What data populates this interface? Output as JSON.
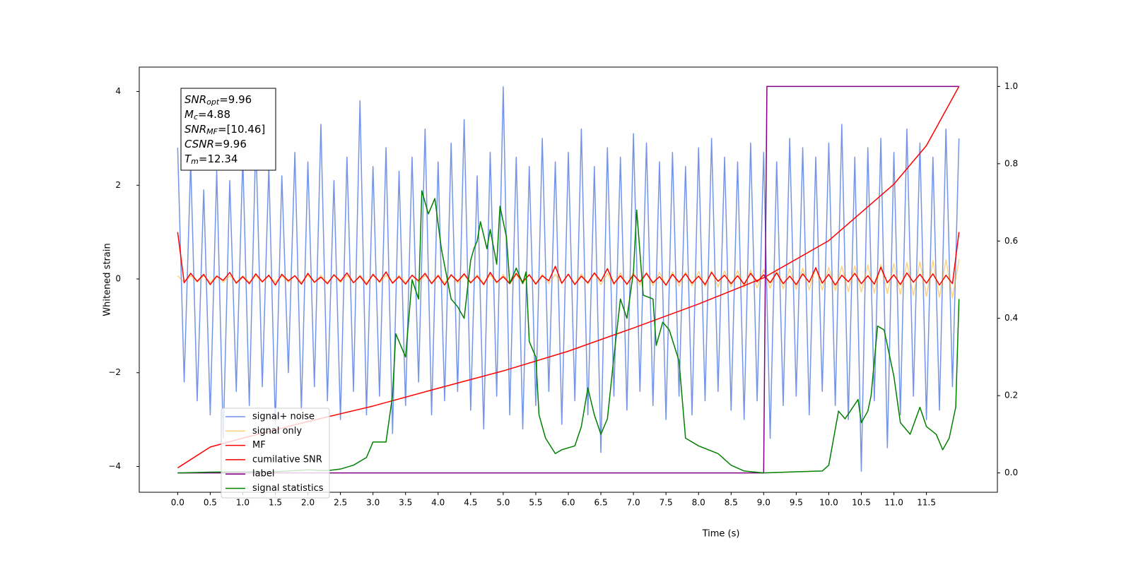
{
  "chart_data": {
    "type": "line",
    "x_label": "Time (s)",
    "y_label": "Whitened strain",
    "xlim": [
      -0.59,
      12.59
    ],
    "ylim": [
      -4.55,
      4.52
    ],
    "y2lim": [
      -0.05,
      1.05
    ],
    "xticks": [
      {
        "value": 0,
        "label": "0.0"
      },
      0.5,
      {
        "value": 1,
        "label": "1.0"
      },
      1.5,
      {
        "value": 2,
        "label": "2.0"
      },
      2.5,
      {
        "value": 3,
        "label": "3.0"
      },
      3.5,
      {
        "value": 4,
        "label": "4.0"
      },
      4.5,
      {
        "value": 5,
        "label": "5.0"
      },
      5.5,
      {
        "value": 6,
        "label": "6.0"
      },
      6.5,
      {
        "value": 7,
        "label": "7.0"
      },
      7.5,
      {
        "value": 8,
        "label": "8.0"
      },
      8.5,
      {
        "value": 9,
        "label": "9.0"
      },
      9.5,
      {
        "value": 10,
        "label": "10.0"
      },
      10.5,
      {
        "value": 11,
        "label": "11.0"
      },
      11.5
    ],
    "yticks": [
      {
        "value": -4,
        "label": "−4"
      },
      {
        "value": -2,
        "label": "−2"
      },
      0,
      2,
      4
    ],
    "y2ticks": [
      {
        "value": 0,
        "label": "0.0"
      },
      0.2,
      0.4,
      0.6,
      0.8,
      {
        "value": 1,
        "label": "1.0"
      }
    ],
    "legend": "lower left",
    "annotation": [
      {
        "symbol": "SNR",
        "subscript": "opt",
        "text": "=9.96"
      },
      {
        "symbol": "M",
        "subscript": "c",
        "text": "=4.88"
      },
      {
        "symbol": "SNR",
        "subscript": "MF",
        "text": "=[10.46]"
      },
      {
        "symbol": "CSNR",
        "text": "=9.96"
      },
      {
        "symbol": "T",
        "subscript": "m",
        "text": "=12.34"
      }
    ],
    "x": [
      0,
      0.1,
      0.2,
      0.3,
      0.4,
      0.5,
      0.6,
      0.7,
      0.8,
      0.9,
      1,
      1.1,
      1.2,
      1.3,
      1.4,
      1.5,
      1.6,
      1.7,
      1.8,
      1.9,
      2,
      2.1,
      2.2,
      2.3,
      2.4,
      2.5,
      2.6,
      2.7,
      2.8,
      2.9,
      3,
      3.1,
      3.2,
      3.3,
      3.4,
      3.5,
      3.6,
      3.7,
      3.8,
      3.9,
      4,
      4.1,
      4.2,
      4.3,
      4.4,
      4.5,
      4.6,
      4.7,
      4.8,
      4.9,
      5,
      5.1,
      5.2,
      5.3,
      5.4,
      5.5,
      5.6,
      5.7,
      5.8,
      5.9,
      6,
      6.1,
      6.2,
      6.3,
      6.4,
      6.5,
      6.6,
      6.7,
      6.8,
      6.9,
      7,
      7.1,
      7.2,
      7.3,
      7.4,
      7.5,
      7.6,
      7.7,
      7.8,
      7.9,
      8,
      8.1,
      8.2,
      8.3,
      8.4,
      8.5,
      8.6,
      8.7,
      8.8,
      8.9,
      9,
      9.1,
      9.2,
      9.3,
      9.4,
      9.5,
      9.6,
      9.7,
      9.8,
      9.9,
      10,
      10.1,
      10.2,
      10.3,
      10.4,
      10.5,
      10.6,
      10.7,
      10.8,
      10.9,
      11,
      11.1,
      11.2,
      11.3,
      11.4,
      11.5,
      11.6,
      11.7,
      11.8,
      11.9,
      12
    ],
    "series": [
      {
        "name": "signal+ noise",
        "color": "#7494e8",
        "alpha": 1,
        "values": [
          2.8,
          -2.2,
          2.5,
          -2.6,
          1.9,
          -2.9,
          2.3,
          -3.4,
          2.1,
          -2.4,
          2.6,
          -2.7,
          3.0,
          -2.3,
          2.4,
          -3.1,
          2.2,
          -2.0,
          2.7,
          -2.8,
          2.5,
          -2.3,
          3.3,
          -2.6,
          2.1,
          -3.0,
          2.6,
          -2.4,
          3.8,
          -2.9,
          2.4,
          -2.5,
          2.8,
          -3.3,
          2.3,
          -2.7,
          2.6,
          -2.2,
          3.2,
          -2.9,
          2.5,
          -2.6,
          2.9,
          -2.4,
          3.4,
          -2.8,
          2.2,
          -3.2,
          2.7,
          -2.5,
          4.1,
          -2.9,
          2.6,
          -3.2,
          2.4,
          -2.7,
          3.0,
          -2.4,
          2.5,
          -3.1,
          2.7,
          -2.6,
          3.2,
          -2.9,
          2.4,
          -3.7,
          2.8,
          -2.5,
          2.6,
          -2.8,
          3.1,
          -2.4,
          2.9,
          -2.7,
          2.5,
          -3.0,
          2.7,
          -2.5,
          2.4,
          -2.9,
          2.8,
          -2.6,
          3.0,
          -2.4,
          2.6,
          -2.8,
          2.5,
          -3.0,
          2.9,
          -2.6,
          2.7,
          -3.4,
          2.5,
          -2.7,
          3.0,
          -2.5,
          2.8,
          -2.9,
          2.6,
          -2.4,
          2.9,
          -2.7,
          3.3,
          -3.0,
          2.6,
          -4.1,
          2.8,
          -2.6,
          3.0,
          -3.6,
          2.7,
          -2.9,
          3.2,
          -2.5,
          2.9,
          -3.0,
          2.6,
          -2.8,
          3.2,
          -2.3,
          3.0
        ]
      },
      {
        "name": "signal only",
        "color": "#ffa500",
        "alpha": 0.5,
        "values": [
          0.07,
          -0.07,
          0.07,
          -0.07,
          0.07,
          -0.07,
          0.07,
          -0.07,
          0.07,
          -0.07,
          0.07,
          -0.07,
          0.07,
          -0.07,
          0.07,
          -0.07,
          0.07,
          -0.07,
          0.07,
          -0.07,
          0.08,
          -0.08,
          0.08,
          -0.08,
          0.08,
          -0.08,
          0.08,
          -0.08,
          0.08,
          -0.08,
          0.08,
          -0.08,
          0.08,
          -0.08,
          0.08,
          -0.08,
          0.08,
          -0.08,
          0.08,
          -0.08,
          0.09,
          -0.09,
          0.09,
          -0.09,
          0.09,
          -0.09,
          0.09,
          -0.09,
          0.09,
          -0.09,
          0.1,
          -0.1,
          0.1,
          -0.1,
          0.1,
          -0.1,
          0.1,
          -0.1,
          0.1,
          -0.1,
          0.11,
          -0.11,
          0.11,
          -0.11,
          0.12,
          -0.12,
          0.12,
          -0.12,
          0.13,
          -0.13,
          0.13,
          -0.13,
          0.14,
          -0.14,
          0.14,
          -0.14,
          0.15,
          -0.15,
          0.15,
          -0.15,
          0.16,
          -0.16,
          0.17,
          -0.17,
          0.17,
          -0.17,
          0.18,
          -0.18,
          0.19,
          -0.19,
          0.2,
          -0.2,
          0.21,
          -0.21,
          0.22,
          -0.22,
          0.23,
          -0.23,
          0.24,
          -0.24,
          0.25,
          -0.25,
          0.27,
          -0.27,
          0.28,
          -0.28,
          0.3,
          -0.3,
          0.31,
          -0.31,
          0.33,
          -0.33,
          0.35,
          -0.35,
          0.37,
          -0.37,
          0.39,
          -0.39,
          0.41,
          -0.41,
          0.42
        ]
      },
      {
        "name": "MF",
        "color": "#ff0000",
        "alpha": 1,
        "values": [
          1.0,
          -0.08,
          0.12,
          -0.05,
          0.1,
          -0.12,
          0.06,
          -0.03,
          0.14,
          -0.09,
          0.05,
          -0.1,
          0.11,
          -0.06,
          0.08,
          -0.13,
          0.1,
          -0.04,
          0.07,
          -0.11,
          0.12,
          -0.07,
          0.04,
          -0.1,
          0.09,
          -0.05,
          0.13,
          -0.08,
          0.06,
          -0.12,
          0.1,
          -0.06,
          0.15,
          -0.09,
          0.05,
          -0.11,
          0.08,
          -0.04,
          0.12,
          -0.1,
          0.07,
          -0.13,
          0.09,
          -0.05,
          0.11,
          -0.08,
          0.06,
          -0.12,
          0.14,
          -0.07,
          0.05,
          -0.1,
          0.12,
          -0.06,
          0.09,
          -0.11,
          0.07,
          -0.04,
          0.27,
          -0.09,
          0.1,
          -0.12,
          0.06,
          -0.08,
          0.13,
          -0.05,
          0.22,
          -0.1,
          0.07,
          -0.11,
          0.09,
          -0.06,
          0.12,
          -0.08,
          0.05,
          -0.13,
          0.1,
          -0.07,
          0.11,
          -0.09,
          0.06,
          -0.12,
          0.14,
          -0.05,
          0.08,
          -0.1,
          0.07,
          -0.11,
          0.12,
          -0.06,
          0.09,
          -0.08,
          0.13,
          -0.1,
          0.06,
          -0.12,
          0.11,
          -0.07,
          0.24,
          -0.09,
          0.1,
          -0.13,
          0.08,
          -0.06,
          0.12,
          -0.1,
          0.07,
          -0.11,
          0.25,
          -0.08,
          0.09,
          -0.12,
          0.13,
          -0.07,
          0.1,
          -0.09,
          0.11,
          -0.13,
          0.08,
          -0.1,
          1.0
        ]
      },
      {
        "name": "cumilative SNR",
        "color": "#ff0000",
        "alpha": 1,
        "axis": "y2",
        "x": [
          0,
          0.5,
          1,
          2,
          3,
          4,
          5,
          6,
          7,
          8,
          9,
          10,
          11,
          11.5,
          12
        ],
        "values": [
          0.013,
          0.067,
          0.09,
          0.133,
          0.173,
          0.219,
          0.264,
          0.315,
          0.375,
          0.437,
          0.505,
          0.601,
          0.747,
          0.847,
          1.0
        ]
      },
      {
        "name": "label",
        "color": "#800080",
        "alpha": 1,
        "axis": "y2",
        "x": [
          0,
          9.0,
          9.05,
          12.0
        ],
        "values": [
          0,
          0,
          1,
          1
        ]
      },
      {
        "name": "signal statistics",
        "color": "#008000",
        "alpha": 1,
        "axis": "y2",
        "x": [
          0,
          0.5,
          1,
          1.5,
          2,
          2.3,
          2.5,
          2.7,
          2.9,
          3,
          3.2,
          3.3,
          3.35,
          3.5,
          3.6,
          3.7,
          3.75,
          3.85,
          3.95,
          4.05,
          4.2,
          4.3,
          4.4,
          4.5,
          4.55,
          4.6,
          4.65,
          4.75,
          4.8,
          4.9,
          4.95,
          5.05,
          5.1,
          5.2,
          5.3,
          5.35,
          5.4,
          5.5,
          5.55,
          5.65,
          5.8,
          5.9,
          6.1,
          6.2,
          6.3,
          6.4,
          6.5,
          6.6,
          6.7,
          6.8,
          6.9,
          7,
          7.05,
          7.15,
          7.3,
          7.35,
          7.45,
          7.55,
          7.7,
          7.8,
          8,
          8.3,
          8.5,
          8.7,
          9,
          9.5,
          9.9,
          10,
          10.15,
          10.25,
          10.45,
          10.5,
          10.6,
          10.65,
          10.75,
          10.85,
          11,
          11.1,
          11.25,
          11.4,
          11.5,
          11.65,
          11.75,
          11.85,
          11.95,
          12
        ],
        "values": [
          0.0,
          0.002,
          0.003,
          0.003,
          0.008,
          0.006,
          0.01,
          0.02,
          0.04,
          0.08,
          0.08,
          0.2,
          0.36,
          0.3,
          0.5,
          0.45,
          0.73,
          0.67,
          0.71,
          0.58,
          0.45,
          0.43,
          0.4,
          0.55,
          0.58,
          0.6,
          0.65,
          0.58,
          0.63,
          0.54,
          0.69,
          0.61,
          0.49,
          0.53,
          0.49,
          0.52,
          0.34,
          0.3,
          0.15,
          0.09,
          0.05,
          0.06,
          0.07,
          0.12,
          0.22,
          0.15,
          0.1,
          0.14,
          0.3,
          0.45,
          0.4,
          0.52,
          0.68,
          0.46,
          0.45,
          0.33,
          0.39,
          0.37,
          0.29,
          0.09,
          0.07,
          0.05,
          0.02,
          0.005,
          0.0,
          0.003,
          0.005,
          0.02,
          0.16,
          0.14,
          0.19,
          0.13,
          0.16,
          0.2,
          0.38,
          0.37,
          0.25,
          0.13,
          0.1,
          0.17,
          0.12,
          0.1,
          0.06,
          0.09,
          0.17,
          0.45
        ]
      }
    ]
  }
}
